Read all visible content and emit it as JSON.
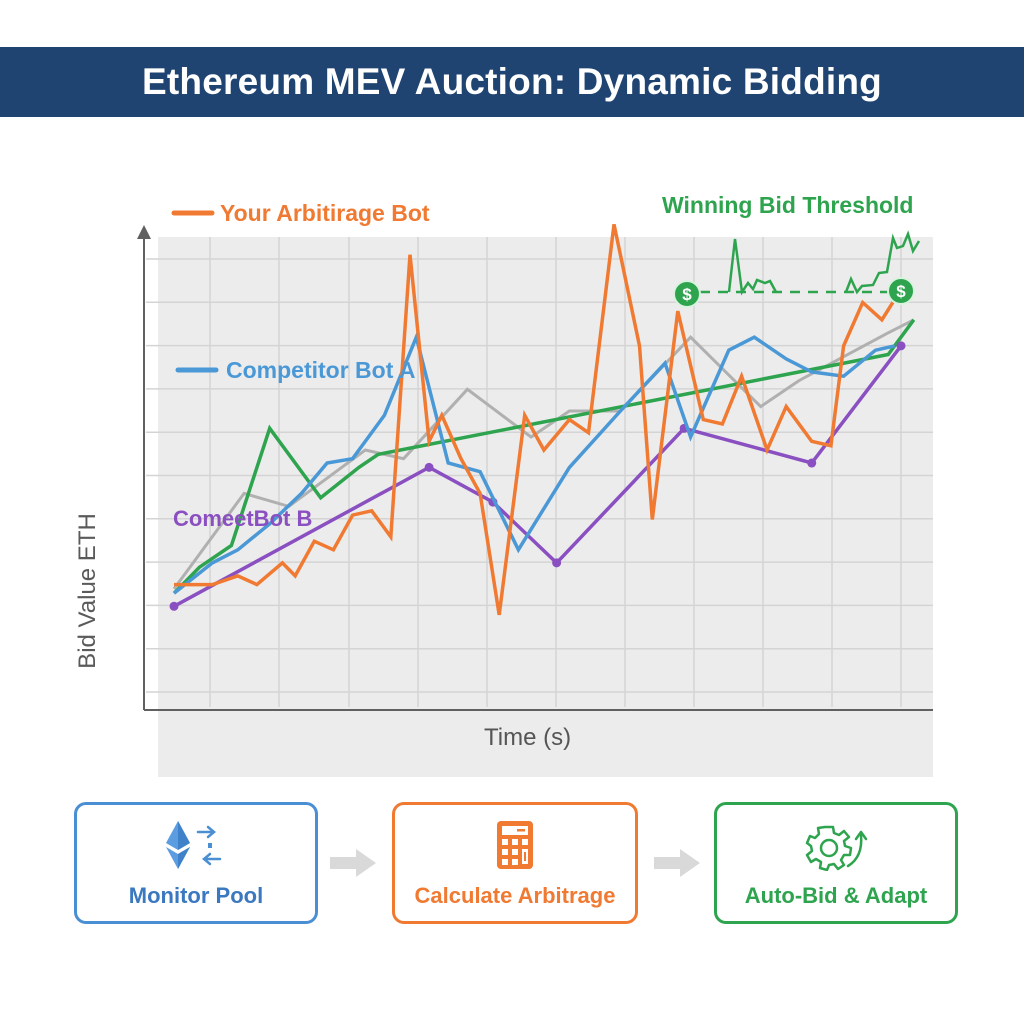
{
  "header": {
    "title": "Ethereum MEV Auction: Dynamic Bidding"
  },
  "legend": {
    "your_bot": "Your Arbitirage Bot",
    "competitor_a": "Competitor Bot A",
    "competitor_b": "ComeetBot B",
    "threshold": "Winning Bid Threshold"
  },
  "axes": {
    "ylabel": "Bid Value ETH",
    "xlabel": "Time (s)"
  },
  "colors": {
    "header_bg": "#1f4472",
    "your_bot": "#f07a32",
    "competitor_a": "#4a98d6",
    "competitor_b": "#8a4fc0",
    "threshold": "#2ea44f",
    "gray_trend": "#b0b0b0"
  },
  "icons": {
    "threshold_marker": "dollar-coin-icon",
    "monitor": "ethereum-exchange-icon",
    "calculate": "calculator-icon",
    "autobid": "gear-arrow-icon",
    "flow_arrow": "arrow-right-icon"
  },
  "flow": {
    "steps": [
      {
        "label": "Monitor Pool",
        "color": "#4a8fd4"
      },
      {
        "label": "Calculate Arbitrage",
        "color": "#f07a32"
      },
      {
        "label": "Auto-Bid & Adapt",
        "color": "#2ea44f"
      }
    ]
  },
  "chart_data": {
    "type": "line",
    "title": "Ethereum MEV Auction: Dynamic Bidding",
    "xlabel": "Time (s)",
    "ylabel": "Bid Value ETH",
    "grid": true,
    "xlim": [
      0,
      12
    ],
    "ylim": [
      0,
      10
    ],
    "tick_labels_shown": false,
    "legend_position": "inline labels (top-left / mid-left)",
    "series": [
      {
        "name": "Your Arbitirage Bot",
        "color": "#f07a32",
        "points": [
          [
            0.0,
            1.6
          ],
          [
            0.6,
            1.6
          ],
          [
            1.0,
            1.8
          ],
          [
            1.3,
            1.6
          ],
          [
            1.7,
            2.1
          ],
          [
            1.9,
            1.8
          ],
          [
            2.2,
            2.6
          ],
          [
            2.5,
            2.4
          ],
          [
            2.8,
            3.2
          ],
          [
            3.1,
            3.3
          ],
          [
            3.4,
            2.7
          ],
          [
            3.7,
            9.2
          ],
          [
            4.0,
            4.9
          ],
          [
            4.2,
            5.5
          ],
          [
            4.5,
            4.5
          ],
          [
            4.8,
            3.7
          ],
          [
            5.1,
            0.9
          ],
          [
            5.5,
            5.5
          ],
          [
            5.8,
            4.7
          ],
          [
            6.2,
            5.4
          ],
          [
            6.5,
            5.1
          ],
          [
            6.9,
            9.9
          ],
          [
            7.3,
            7.1
          ],
          [
            7.5,
            3.1
          ],
          [
            7.9,
            7.9
          ],
          [
            8.3,
            5.4
          ],
          [
            8.6,
            5.3
          ],
          [
            8.9,
            6.4
          ],
          [
            9.3,
            4.7
          ],
          [
            9.6,
            5.7
          ],
          [
            10.0,
            4.9
          ],
          [
            10.3,
            4.8
          ],
          [
            10.5,
            7.1
          ],
          [
            10.8,
            8.1
          ],
          [
            11.1,
            7.7
          ],
          [
            11.4,
            8.4
          ]
        ]
      },
      {
        "name": "Competitor Bot A",
        "color": "#4a98d6",
        "points": [
          [
            0.0,
            1.4
          ],
          [
            0.6,
            2.1
          ],
          [
            1.0,
            2.4
          ],
          [
            1.5,
            3.0
          ],
          [
            2.0,
            3.7
          ],
          [
            2.4,
            4.4
          ],
          [
            2.8,
            4.5
          ],
          [
            3.3,
            5.5
          ],
          [
            3.8,
            7.3
          ],
          [
            4.3,
            4.4
          ],
          [
            4.8,
            4.2
          ],
          [
            5.4,
            2.4
          ],
          [
            6.2,
            4.3
          ],
          [
            7.0,
            5.6
          ],
          [
            7.7,
            6.7
          ],
          [
            8.1,
            5.0
          ],
          [
            8.7,
            7.0
          ],
          [
            9.1,
            7.3
          ],
          [
            9.6,
            6.8
          ],
          [
            10.0,
            6.5
          ],
          [
            10.5,
            6.4
          ],
          [
            11.0,
            7.0
          ],
          [
            11.3,
            7.1
          ]
        ]
      },
      {
        "name": "ComeetBot B",
        "color": "#8a4fc0",
        "points": [
          [
            0.0,
            1.1
          ],
          [
            4.0,
            4.3
          ],
          [
            5.0,
            3.5
          ],
          [
            6.0,
            2.1
          ],
          [
            8.0,
            5.2
          ],
          [
            10.0,
            4.4
          ],
          [
            11.4,
            7.1
          ]
        ]
      },
      {
        "name": "Winning Bid Threshold",
        "color": "#2ea44f",
        "points": [
          [
            0.0,
            1.4
          ],
          [
            0.4,
            2.0
          ],
          [
            0.9,
            2.5
          ],
          [
            1.5,
            5.2
          ],
          [
            2.3,
            3.6
          ],
          [
            2.9,
            4.3
          ],
          [
            3.2,
            4.6
          ],
          [
            11.2,
            6.9
          ],
          [
            11.6,
            7.7
          ]
        ],
        "threshold_level": 8.3,
        "threshold_markers_x": [
          8.0,
          11.4
        ]
      },
      {
        "name": "Market Trend (unlabeled)",
        "color": "#b0b0b0",
        "points": [
          [
            0.0,
            1.5
          ],
          [
            1.1,
            3.7
          ],
          [
            1.8,
            3.4
          ],
          [
            3.0,
            4.7
          ],
          [
            3.6,
            4.5
          ],
          [
            4.6,
            6.1
          ],
          [
            5.6,
            5.0
          ],
          [
            6.2,
            5.6
          ],
          [
            7.0,
            5.6
          ],
          [
            8.1,
            7.3
          ],
          [
            9.2,
            5.7
          ],
          [
            9.8,
            6.3
          ],
          [
            11.2,
            7.4
          ],
          [
            11.6,
            7.7
          ]
        ]
      }
    ]
  }
}
